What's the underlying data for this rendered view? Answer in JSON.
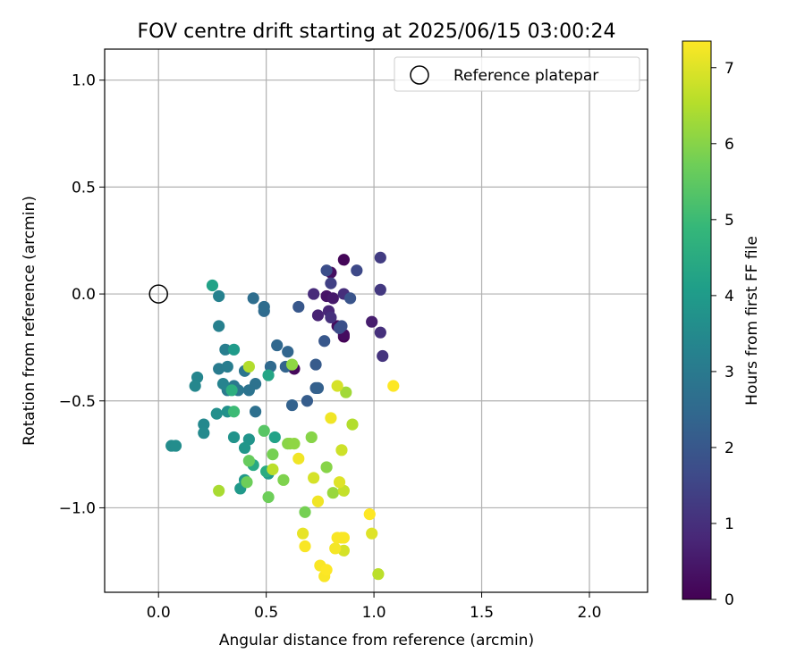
{
  "chart_data": {
    "type": "scatter",
    "title": "FOV centre drift starting at 2025/06/15 03:00:24",
    "xlabel": "Angular distance from reference (arcmin)",
    "ylabel": "Rotation from reference (arcmin)",
    "xlim": [
      -0.25,
      2.27
    ],
    "ylim": [
      -1.395,
      1.145
    ],
    "xticks": [
      0.0,
      0.5,
      1.0,
      1.5,
      2.0
    ],
    "xtick_labels": [
      "0.0",
      "0.5",
      "1.0",
      "1.5",
      "2.0"
    ],
    "yticks": [
      -1.0,
      -0.5,
      0.0,
      0.5,
      1.0
    ],
    "ytick_labels": [
      "−1.0",
      "−0.5",
      "0.0",
      "0.5",
      "1.0"
    ],
    "grid": true,
    "legend": {
      "position": "top-right",
      "entries": [
        "Reference platepar"
      ]
    },
    "reference_point": {
      "x": 0.0,
      "y": 0.0
    },
    "colorbar": {
      "label": "Hours from first FF file",
      "colormap": "viridis",
      "range": [
        0,
        7.35
      ],
      "ticks": [
        0,
        1,
        2,
        3,
        4,
        5,
        6,
        7
      ],
      "tick_labels": [
        "0",
        "1",
        "2",
        "3",
        "4",
        "5",
        "6",
        "7"
      ],
      "stops": [
        "#440154",
        "#482878",
        "#3e4a89",
        "#31688e",
        "#26828e",
        "#1f9e89",
        "#35b779",
        "#6ece58",
        "#b5de2b",
        "#fde725"
      ]
    },
    "points": [
      {
        "x": 0.86,
        "y": 0.16,
        "h": 0.1
      },
      {
        "x": 0.86,
        "y": -0.2,
        "h": 0.05
      },
      {
        "x": 0.63,
        "y": -0.35,
        "h": 0.15
      },
      {
        "x": 0.83,
        "y": -0.15,
        "h": 0.2
      },
      {
        "x": 0.8,
        "y": 0.1,
        "h": 0.3
      },
      {
        "x": 0.86,
        "y": -0.19,
        "h": 0.25
      },
      {
        "x": 0.78,
        "y": -0.01,
        "h": 0.4
      },
      {
        "x": 0.81,
        "y": -0.02,
        "h": 0.5
      },
      {
        "x": 0.99,
        "y": -0.13,
        "h": 0.6
      },
      {
        "x": 0.74,
        "y": -0.1,
        "h": 0.7
      },
      {
        "x": 0.79,
        "y": -0.08,
        "h": 0.8
      },
      {
        "x": 0.72,
        "y": 0.0,
        "h": 0.9
      },
      {
        "x": 0.86,
        "y": 0.0,
        "h": 0.95
      },
      {
        "x": 1.03,
        "y": -0.18,
        "h": 1.0
      },
      {
        "x": 1.04,
        "y": -0.29,
        "h": 1.1
      },
      {
        "x": 1.03,
        "y": 0.02,
        "h": 1.2
      },
      {
        "x": 1.03,
        "y": 0.17,
        "h": 1.3
      },
      {
        "x": 0.8,
        "y": 0.05,
        "h": 1.4
      },
      {
        "x": 0.8,
        "y": -0.11,
        "h": 1.0
      },
      {
        "x": 0.92,
        "y": 0.11,
        "h": 1.6
      },
      {
        "x": 0.84,
        "y": -0.16,
        "h": 1.7
      },
      {
        "x": 0.85,
        "y": -0.15,
        "h": 1.8
      },
      {
        "x": 0.78,
        "y": 0.11,
        "h": 1.75
      },
      {
        "x": 0.89,
        "y": -0.02,
        "h": 1.9
      },
      {
        "x": 0.77,
        "y": -0.22,
        "h": 2.0
      },
      {
        "x": 0.65,
        "y": -0.06,
        "h": 2.0
      },
      {
        "x": 0.73,
        "y": -0.33,
        "h": 2.1
      },
      {
        "x": 0.69,
        "y": -0.5,
        "h": 2.15
      },
      {
        "x": 0.73,
        "y": -0.44,
        "h": 2.2
      },
      {
        "x": 0.74,
        "y": -0.44,
        "h": 2.25
      },
      {
        "x": 0.62,
        "y": -0.52,
        "h": 2.3
      },
      {
        "x": 0.59,
        "y": -0.34,
        "h": 2.35
      },
      {
        "x": 0.6,
        "y": -0.27,
        "h": 2.4
      },
      {
        "x": 0.55,
        "y": -0.24,
        "h": 2.45
      },
      {
        "x": 0.52,
        "y": -0.34,
        "h": 2.5
      },
      {
        "x": 0.49,
        "y": -0.08,
        "h": 2.55
      },
      {
        "x": 0.49,
        "y": -0.06,
        "h": 2.6
      },
      {
        "x": 0.44,
        "y": -0.02,
        "h": 2.65
      },
      {
        "x": 0.45,
        "y": -0.55,
        "h": 2.7
      },
      {
        "x": 0.45,
        "y": -0.42,
        "h": 2.75
      },
      {
        "x": 0.42,
        "y": -0.45,
        "h": 2.8
      },
      {
        "x": 0.4,
        "y": -0.36,
        "h": 2.85
      },
      {
        "x": 0.37,
        "y": -0.45,
        "h": 2.9
      },
      {
        "x": 0.35,
        "y": -0.43,
        "h": 2.95
      },
      {
        "x": 0.32,
        "y": -0.45,
        "h": 3.0
      },
      {
        "x": 0.28,
        "y": -0.35,
        "h": 3.05
      },
      {
        "x": 0.32,
        "y": -0.34,
        "h": 3.1
      },
      {
        "x": 0.31,
        "y": -0.26,
        "h": 3.15
      },
      {
        "x": 0.28,
        "y": -0.15,
        "h": 3.2
      },
      {
        "x": 0.28,
        "y": -0.01,
        "h": 3.25
      },
      {
        "x": 0.3,
        "y": -0.42,
        "h": 3.3
      },
      {
        "x": 0.18,
        "y": -0.39,
        "h": 3.35
      },
      {
        "x": 0.17,
        "y": -0.43,
        "h": 3.4
      },
      {
        "x": 0.21,
        "y": -0.61,
        "h": 3.45
      },
      {
        "x": 0.21,
        "y": -0.65,
        "h": 3.5
      },
      {
        "x": 0.06,
        "y": -0.71,
        "h": 3.55
      },
      {
        "x": 0.08,
        "y": -0.71,
        "h": 3.6
      },
      {
        "x": 0.27,
        "y": -0.56,
        "h": 3.65
      },
      {
        "x": 0.32,
        "y": -0.55,
        "h": 3.7
      },
      {
        "x": 0.35,
        "y": -0.67,
        "h": 3.75
      },
      {
        "x": 0.42,
        "y": -0.68,
        "h": 3.8
      },
      {
        "x": 0.4,
        "y": -0.72,
        "h": 3.85
      },
      {
        "x": 0.4,
        "y": -0.87,
        "h": 3.9
      },
      {
        "x": 0.38,
        "y": -0.91,
        "h": 3.95
      },
      {
        "x": 0.51,
        "y": -0.84,
        "h": 4.0
      },
      {
        "x": 0.35,
        "y": -0.26,
        "h": 4.0
      },
      {
        "x": 0.51,
        "y": -0.38,
        "h": 4.3
      },
      {
        "x": 0.44,
        "y": -0.8,
        "h": 4.4
      },
      {
        "x": 0.5,
        "y": -0.83,
        "h": 4.5
      },
      {
        "x": 0.54,
        "y": -0.67,
        "h": 4.2
      },
      {
        "x": 0.25,
        "y": 0.04,
        "h": 4.2
      },
      {
        "x": 0.34,
        "y": -0.45,
        "h": 4.6
      },
      {
        "x": 0.35,
        "y": -0.55,
        "h": 5.0
      },
      {
        "x": 0.49,
        "y": -0.64,
        "h": 5.4
      },
      {
        "x": 0.42,
        "y": -0.78,
        "h": 5.6
      },
      {
        "x": 0.41,
        "y": -0.88,
        "h": 5.7
      },
      {
        "x": 0.51,
        "y": -0.95,
        "h": 5.7
      },
      {
        "x": 0.53,
        "y": -0.75,
        "h": 5.8
      },
      {
        "x": 0.58,
        "y": -0.87,
        "h": 5.9
      },
      {
        "x": 0.6,
        "y": -0.7,
        "h": 6.0
      },
      {
        "x": 0.61,
        "y": -0.7,
        "h": 6.05
      },
      {
        "x": 0.63,
        "y": -0.7,
        "h": 6.1
      },
      {
        "x": 0.71,
        "y": -0.67,
        "h": 6.0
      },
      {
        "x": 0.78,
        "y": -0.81,
        "h": 6.0
      },
      {
        "x": 0.62,
        "y": -0.33,
        "h": 6.1
      },
      {
        "x": 0.68,
        "y": -1.02,
        "h": 5.8
      },
      {
        "x": 0.81,
        "y": -0.93,
        "h": 6.2
      },
      {
        "x": 0.87,
        "y": -0.46,
        "h": 6.3
      },
      {
        "x": 0.28,
        "y": -0.92,
        "h": 6.4
      },
      {
        "x": 0.42,
        "y": -0.34,
        "h": 6.5
      },
      {
        "x": 0.9,
        "y": -0.61,
        "h": 6.5
      },
      {
        "x": 0.53,
        "y": -0.82,
        "h": 6.6
      },
      {
        "x": 0.86,
        "y": -0.92,
        "h": 6.7
      },
      {
        "x": 0.85,
        "y": -0.73,
        "h": 6.8
      },
      {
        "x": 0.72,
        "y": -0.86,
        "h": 6.9
      },
      {
        "x": 0.84,
        "y": -0.88,
        "h": 7.0
      },
      {
        "x": 1.02,
        "y": -1.31,
        "h": 6.6
      },
      {
        "x": 0.83,
        "y": -0.43,
        "h": 6.9
      },
      {
        "x": 0.86,
        "y": -1.2,
        "h": 6.9
      },
      {
        "x": 0.99,
        "y": -1.12,
        "h": 7.0
      },
      {
        "x": 0.67,
        "y": -1.12,
        "h": 7.1
      },
      {
        "x": 0.65,
        "y": -0.77,
        "h": 7.2
      },
      {
        "x": 0.74,
        "y": -0.97,
        "h": 7.2
      },
      {
        "x": 0.8,
        "y": -0.58,
        "h": 7.2
      },
      {
        "x": 0.82,
        "y": -1.19,
        "h": 7.25
      },
      {
        "x": 0.83,
        "y": -1.14,
        "h": 7.3
      },
      {
        "x": 0.85,
        "y": -1.14,
        "h": 7.3
      },
      {
        "x": 0.86,
        "y": -1.14,
        "h": 7.3
      },
      {
        "x": 0.68,
        "y": -1.18,
        "h": 7.3
      },
      {
        "x": 0.75,
        "y": -1.27,
        "h": 7.3
      },
      {
        "x": 0.77,
        "y": -1.32,
        "h": 7.3
      },
      {
        "x": 0.78,
        "y": -1.29,
        "h": 7.35
      },
      {
        "x": 0.98,
        "y": -1.03,
        "h": 7.35
      },
      {
        "x": 1.09,
        "y": -0.43,
        "h": 7.35
      }
    ]
  }
}
